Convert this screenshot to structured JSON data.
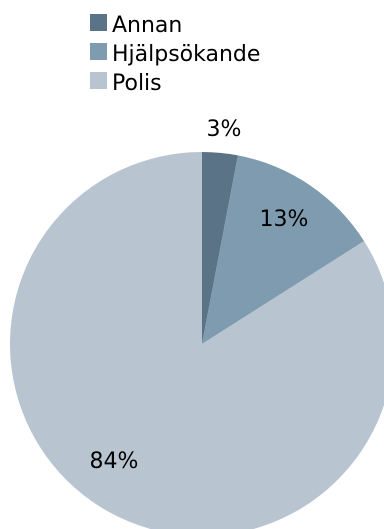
{
  "chart_data": {
    "type": "pie",
    "title": "",
    "legend_position": "top-left",
    "labels": [
      "Annan",
      "Hjälpsökande",
      "Polis"
    ],
    "values": [
      3,
      13,
      84
    ],
    "data_labels": [
      "3%",
      "13%",
      "84%"
    ],
    "colors": [
      "#5a7386",
      "#7f9bb0",
      "#b8c4d0"
    ],
    "start_angle_deg": 0,
    "direction": "clockwise"
  }
}
